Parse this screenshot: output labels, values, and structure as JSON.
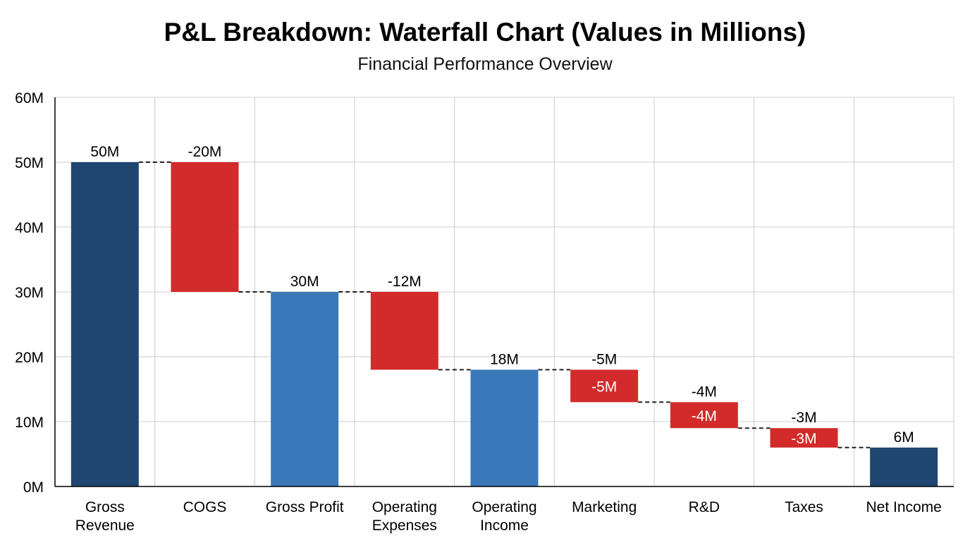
{
  "chart_data": {
    "type": "waterfall",
    "title": "P&L Breakdown: Waterfall Chart (Values in Millions)",
    "subtitle": "Financial Performance Overview",
    "xlabel": "",
    "ylabel": "",
    "ylim": [
      0,
      60
    ],
    "yticks": [
      0,
      10,
      20,
      30,
      40,
      50,
      60
    ],
    "ytick_labels": [
      "0M",
      "10M",
      "20M",
      "30M",
      "40M",
      "50M",
      "60M"
    ],
    "grid": true,
    "legend": "none",
    "categories": [
      [
        "Gross",
        "Revenue"
      ],
      [
        "COGS"
      ],
      [
        "Gross Profit"
      ],
      [
        "Operating",
        "Expenses"
      ],
      [
        "Operating",
        "Income"
      ],
      [
        "Marketing"
      ],
      [
        "R&D"
      ],
      [
        "Taxes"
      ],
      [
        "Net Income"
      ]
    ],
    "bars": [
      {
        "kind": "total",
        "start": 0,
        "end": 50,
        "label": "50M",
        "inner_label": null
      },
      {
        "kind": "decrease",
        "start": 50,
        "end": 30,
        "label": "-20M",
        "inner_label": null
      },
      {
        "kind": "subtotal",
        "start": 0,
        "end": 30,
        "label": "30M",
        "inner_label": null
      },
      {
        "kind": "decrease",
        "start": 30,
        "end": 18,
        "label": "-12M",
        "inner_label": null
      },
      {
        "kind": "subtotal",
        "start": 0,
        "end": 18,
        "label": "18M",
        "inner_label": null
      },
      {
        "kind": "decrease",
        "start": 18,
        "end": 13,
        "label": "-5M",
        "inner_label": "-5M"
      },
      {
        "kind": "decrease",
        "start": 13,
        "end": 9,
        "label": "-4M",
        "inner_label": "-4M"
      },
      {
        "kind": "decrease",
        "start": 9,
        "end": 6,
        "label": "-3M",
        "inner_label": "-3M"
      },
      {
        "kind": "total",
        "start": 0,
        "end": 6,
        "label": "6M",
        "inner_label": null
      }
    ],
    "colors": {
      "total": "#1f4571",
      "subtotal": "#3a78b9",
      "decrease": "#d32b2b",
      "connector": "#222222",
      "grid": "#cccccc"
    }
  }
}
